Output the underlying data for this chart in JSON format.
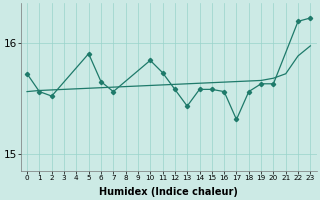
{
  "xlabel": "Humidex (Indice chaleur)",
  "background_color": "#cceae5",
  "grid_color": "#99d4cb",
  "line_color": "#1e7a6a",
  "x_all": [
    0,
    1,
    2,
    3,
    4,
    5,
    6,
    7,
    8,
    9,
    10,
    11,
    12,
    13,
    14,
    15,
    16,
    17,
    18,
    19,
    20,
    21,
    22,
    23
  ],
  "y_trend": [
    15.56,
    15.57,
    15.575,
    15.58,
    15.585,
    15.59,
    15.595,
    15.6,
    15.605,
    15.61,
    15.615,
    15.62,
    15.625,
    15.63,
    15.635,
    15.64,
    15.645,
    15.65,
    15.655,
    15.66,
    15.68,
    15.72,
    15.88,
    15.97
  ],
  "jagged_x": [
    0,
    1,
    2,
    5,
    6,
    7,
    10,
    11,
    12,
    13,
    14,
    15,
    16,
    17,
    18,
    19,
    20,
    22,
    23
  ],
  "jagged_y": [
    15.72,
    15.56,
    15.52,
    15.9,
    15.65,
    15.56,
    15.84,
    15.73,
    15.58,
    15.43,
    15.58,
    15.58,
    15.56,
    15.31,
    15.56,
    15.63,
    15.63,
    16.19,
    16.22
  ],
  "ylim": [
    14.85,
    16.35
  ],
  "yticks": [
    15,
    16
  ],
  "xlim": [
    -0.5,
    23.5
  ]
}
